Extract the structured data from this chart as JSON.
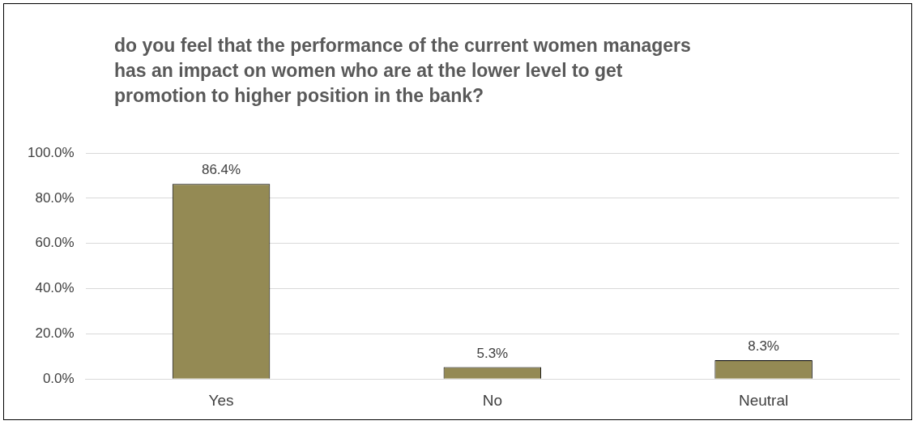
{
  "chart_data": {
    "type": "bar",
    "title": "do you feel that the performance of the current women managers has an impact on women who are at the lower level to get promotion to higher position in the bank?",
    "categories": [
      "Yes",
      "No",
      "Neutral"
    ],
    "values": [
      86.4,
      5.3,
      8.3
    ],
    "value_labels": [
      "86.4%",
      "5.3%",
      "8.3%"
    ],
    "color": "#948a54",
    "ylim": [
      0,
      100
    ],
    "yticks": [
      {
        "value": 0,
        "label": "0.0%"
      },
      {
        "value": 20,
        "label": "20.0%"
      },
      {
        "value": 40,
        "label": "40.0%"
      },
      {
        "value": 60,
        "label": "60.0%"
      },
      {
        "value": 80,
        "label": "80.0%"
      },
      {
        "value": 100,
        "label": "100.0%"
      }
    ],
    "grid": "y"
  }
}
